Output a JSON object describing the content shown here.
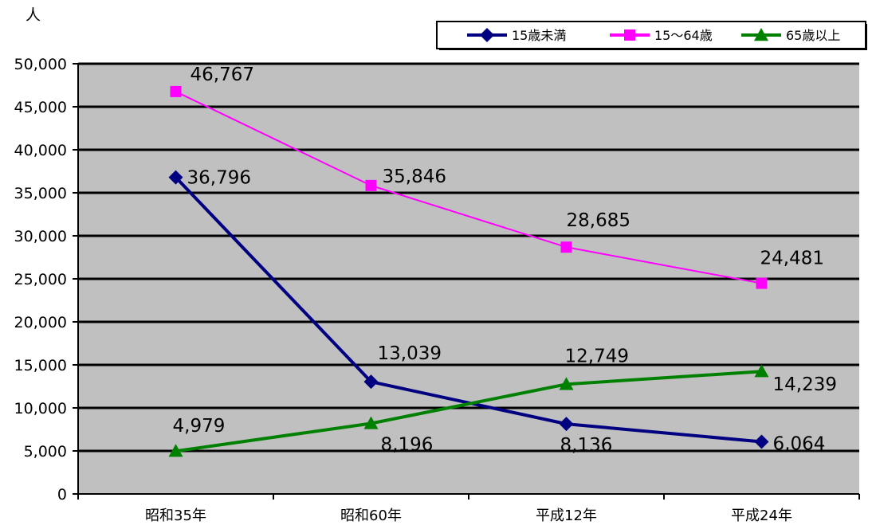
{
  "chart_data": {
    "type": "line",
    "title": "",
    "ylabel": "人",
    "xlabel": "",
    "categories": [
      "昭和35年",
      "昭和60年",
      "平成12年",
      "平成24年"
    ],
    "ylim": [
      0,
      50000
    ],
    "yticks": [
      0,
      5000,
      10000,
      15000,
      20000,
      25000,
      30000,
      35000,
      40000,
      45000,
      50000
    ],
    "ytick_labels": [
      "0",
      "5,000",
      "10,000",
      "15,000",
      "20,000",
      "25,000",
      "30,000",
      "35,000",
      "40,000",
      "45,000",
      "50,000"
    ],
    "grid": true,
    "legend_position": "top-right",
    "series": [
      {
        "name": "15歳未満",
        "color": "#000080",
        "marker": "diamond",
        "values": [
          36796,
          13039,
          8136,
          6064
        ],
        "labels": [
          "36,796",
          "13,039",
          "8,136",
          "6,064"
        ]
      },
      {
        "name": "15～64歳",
        "color": "#ff00ff",
        "marker": "square",
        "values": [
          46767,
          35846,
          28685,
          24481
        ],
        "labels": [
          "46,767",
          "35,846",
          "28,685",
          "24,481"
        ]
      },
      {
        "name": "65歳以上",
        "color": "#008000",
        "marker": "triangle",
        "values": [
          4979,
          8196,
          12749,
          14239
        ],
        "labels": [
          "4,979",
          "8,196",
          "12,749",
          "14,239"
        ]
      }
    ],
    "plot_background": "#c0c0c0"
  }
}
